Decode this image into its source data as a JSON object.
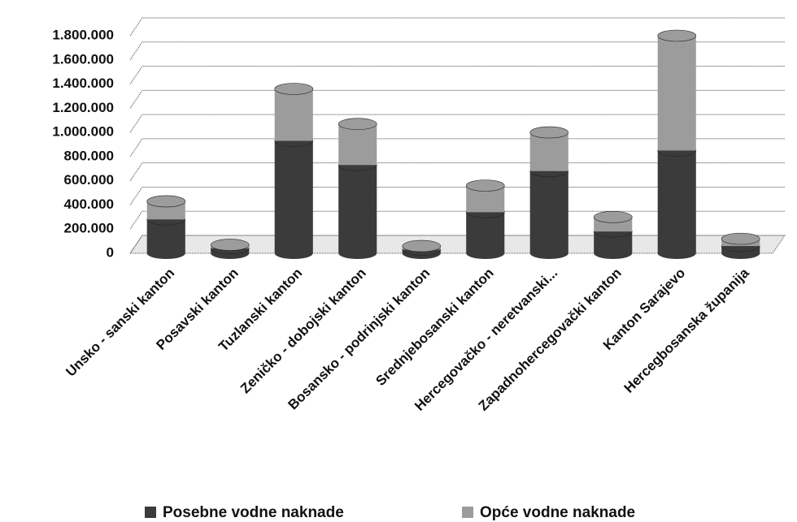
{
  "chart_data": {
    "type": "bar",
    "stacked": true,
    "categories": [
      "Unsko - sanski kanton",
      "Posavski kanton",
      "Tuzlanski kanton",
      "Zeničko - dobojski kanton",
      "Bosansko - podrinjski kanton",
      "Srednjebosanski kanton",
      "Hercegovačko - neretvanski...",
      "Zapadnohercegovački kanton",
      "Kanton Sarajevo",
      "Hercegbosanska županija"
    ],
    "series": [
      {
        "name": "Posebne vodne naknade",
        "color": "#3b3b3b",
        "values": [
          280000,
          40000,
          930000,
          730000,
          30000,
          340000,
          680000,
          180000,
          850000,
          60000
        ]
      },
      {
        "name": "Opće vodne naknade",
        "color": "#9c9c9c",
        "values": [
          150000,
          30000,
          430000,
          340000,
          30000,
          220000,
          320000,
          120000,
          950000,
          60000
        ]
      }
    ],
    "ylim": [
      0,
      1800000
    ],
    "yticks": [
      0,
      {
        "value": 200000,
        "label": "200.000"
      },
      {
        "value": 400000,
        "label": "400.000"
      },
      {
        "value": 600000,
        "label": "600.000"
      },
      {
        "value": 800000,
        "label": "800.000"
      },
      {
        "value": 1000000,
        "label": "1.000.000"
      },
      {
        "value": 1200000,
        "label": "1.200.000"
      },
      {
        "value": 1400000,
        "label": "1.400.000"
      },
      {
        "value": 1600000,
        "label": "1.600.000"
      },
      {
        "value": 1800000,
        "label": "1.800.000"
      }
    ],
    "grid": true,
    "legend": "bottom"
  }
}
